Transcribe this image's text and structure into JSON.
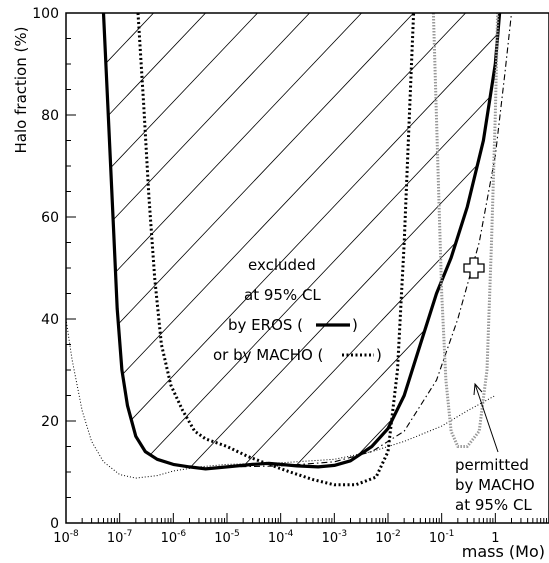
{
  "chart_data": {
    "type": "line",
    "title": "",
    "xlabel": "mass (Mo)",
    "ylabel": "Halo fraction (%)",
    "x_scale": "log",
    "xlim": [
      1e-08,
      10
    ],
    "ylim": [
      0,
      100
    ],
    "grid": false,
    "x_ticks": [
      {
        "value": 1e-08,
        "base": "10",
        "exp": "-8"
      },
      {
        "value": 1e-07,
        "base": "10",
        "exp": "-7"
      },
      {
        "value": 1e-06,
        "base": "10",
        "exp": "-6"
      },
      {
        "value": 1e-05,
        "base": "10",
        "exp": "-5"
      },
      {
        "value": 0.0001,
        "base": "10",
        "exp": "-4"
      },
      {
        "value": 0.001,
        "base": "10",
        "exp": "-3"
      },
      {
        "value": 0.01,
        "base": "10",
        "exp": "-2"
      },
      {
        "value": 0.1,
        "base": "10",
        "exp": "-1"
      },
      {
        "value": 1,
        "base": "1",
        "exp": ""
      }
    ],
    "y_ticks": [
      0,
      20,
      40,
      60,
      80,
      100
    ],
    "series": [
      {
        "style": "solid-thick",
        "color": "#000000",
        "points": [
          [
            5e-08,
            100
          ],
          [
            6e-08,
            82
          ],
          [
            7.5e-08,
            60
          ],
          [
            9e-08,
            42
          ],
          [
            1.1e-07,
            30
          ],
          [
            1.4e-07,
            23
          ],
          [
            2e-07,
            17
          ],
          [
            3e-07,
            14
          ],
          [
            5e-07,
            12.5
          ],
          [
            1e-06,
            11.5
          ],
          [
            2e-06,
            11
          ],
          [
            4e-06,
            10.6
          ],
          [
            1e-05,
            11
          ],
          [
            3e-05,
            11.5
          ],
          [
            6e-05,
            11.7
          ],
          [
            0.0001,
            11.5
          ],
          [
            0.0002,
            11.2
          ],
          [
            0.0005,
            11
          ],
          [
            0.001,
            11.3
          ],
          [
            0.002,
            12.2
          ],
          [
            0.005,
            15
          ],
          [
            0.01,
            18.5
          ],
          [
            0.02,
            25
          ],
          [
            0.04,
            35
          ],
          [
            0.08,
            45
          ],
          [
            0.15,
            52
          ],
          [
            0.3,
            62
          ],
          [
            0.6,
            75
          ],
          [
            1.0,
            90
          ],
          [
            1.2,
            100
          ]
        ]
      },
      {
        "style": "dotted-thick",
        "color": "#000000",
        "points": [
          [
            2.2e-07,
            100
          ],
          [
            2.8e-07,
            82
          ],
          [
            3.5e-07,
            64
          ],
          [
            4.5e-07,
            48
          ],
          [
            6e-07,
            35
          ],
          [
            9e-07,
            27
          ],
          [
            1.5e-06,
            22
          ],
          [
            2.5e-06,
            18
          ],
          [
            4e-06,
            16.5
          ],
          [
            1e-05,
            15
          ],
          [
            2.5e-05,
            13
          ],
          [
            6e-05,
            11.5
          ],
          [
            0.00015,
            10
          ],
          [
            0.0004,
            8.5
          ],
          [
            0.001,
            7.5
          ],
          [
            0.0025,
            7.5
          ],
          [
            0.006,
            9
          ],
          [
            0.01,
            14
          ],
          [
            0.015,
            30
          ],
          [
            0.02,
            55
          ],
          [
            0.025,
            80
          ],
          [
            0.03,
            100
          ]
        ]
      },
      {
        "style": "dotted-thin",
        "color": "#000000",
        "points": [
          [
            1e-08,
            40
          ],
          [
            1.3e-08,
            32
          ],
          [
            2e-08,
            22
          ],
          [
            3e-08,
            16
          ],
          [
            5e-08,
            12
          ],
          [
            1e-07,
            9.5
          ],
          [
            2e-07,
            8.8
          ],
          [
            5e-07,
            9.3
          ],
          [
            1e-06,
            10.2
          ],
          [
            3e-06,
            11
          ],
          [
            1e-05,
            11.5
          ],
          [
            0.0001,
            11.8
          ],
          [
            0.001,
            12.5
          ],
          [
            0.005,
            14
          ],
          [
            0.02,
            16
          ],
          [
            0.1,
            19
          ],
          [
            0.3,
            22
          ],
          [
            1,
            25
          ]
        ]
      },
      {
        "style": "dashdot",
        "color": "#000000",
        "points": [
          [
            1e-05,
            11
          ],
          [
            0.0001,
            11.2
          ],
          [
            0.001,
            12
          ],
          [
            0.005,
            14
          ],
          [
            0.02,
            18
          ],
          [
            0.08,
            28
          ],
          [
            0.2,
            40
          ],
          [
            0.5,
            55
          ],
          [
            1,
            72
          ],
          [
            1.5,
            88
          ],
          [
            2,
            100
          ]
        ]
      },
      {
        "style": "dotted-gray-contour",
        "color": "#999999",
        "points": [
          [
            0.07,
            100
          ],
          [
            0.085,
            70
          ],
          [
            0.1,
            45
          ],
          [
            0.12,
            28
          ],
          [
            0.15,
            18
          ],
          [
            0.2,
            15
          ],
          [
            0.3,
            15
          ],
          [
            0.5,
            18
          ],
          [
            0.7,
            30
          ],
          [
            0.85,
            55
          ],
          [
            1,
            80
          ],
          [
            1.1,
            100
          ]
        ]
      }
    ],
    "marker": {
      "x": 0.4,
      "y": 50
    },
    "annotations": {
      "excluded_line1": "excluded",
      "excluded_line2": "at 95% CL",
      "eros_prefix": "by EROS (",
      "eros_suffix": ")",
      "macho_prefix": "or by MACHO (",
      "macho_suffix": ")",
      "permitted_line1": "permitted",
      "permitted_line2": "by MACHO",
      "permitted_line3": "at 95% CL"
    }
  }
}
